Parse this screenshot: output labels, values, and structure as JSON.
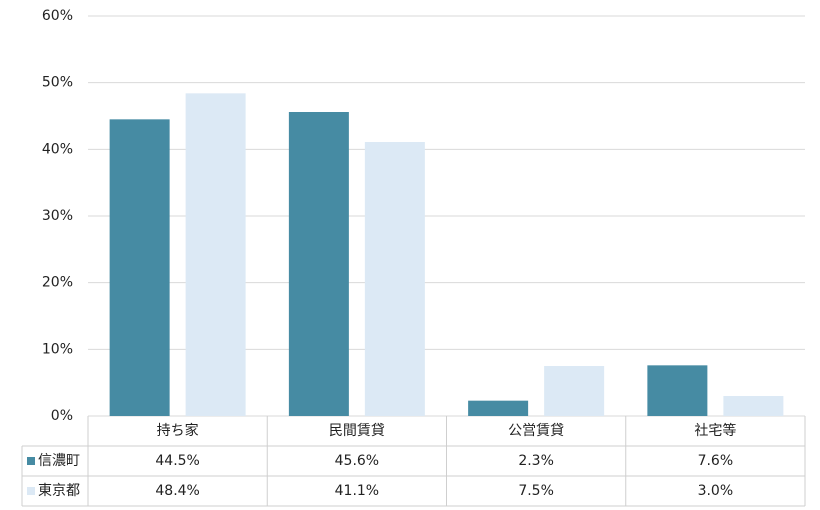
{
  "chart_data": {
    "type": "bar",
    "categories": [
      "持ち家",
      "民間賃貸",
      "公営賃貸",
      "社宅等"
    ],
    "series": [
      {
        "name": "信濃町",
        "color": "#468ba3",
        "values": [
          44.5,
          45.6,
          2.3,
          7.6
        ],
        "value_labels": [
          "44.5%",
          "45.6%",
          "2.3%",
          "7.6%"
        ]
      },
      {
        "name": "東京都",
        "color": "#dce9f5",
        "values": [
          48.4,
          41.1,
          7.5,
          3.0
        ],
        "value_labels": [
          "48.4%",
          "41.1%",
          "7.5%",
          "3.0%"
        ]
      }
    ],
    "ylim": [
      0,
      60
    ],
    "yticks": [
      {
        "value": 0,
        "label": "0%"
      },
      {
        "value": 10,
        "label": "10%"
      },
      {
        "value": 20,
        "label": "20%"
      },
      {
        "value": 30,
        "label": "30%"
      },
      {
        "value": 40,
        "label": "40%"
      },
      {
        "value": 50,
        "label": "50%"
      },
      {
        "value": 60,
        "label": "60%"
      }
    ],
    "grid": true
  }
}
